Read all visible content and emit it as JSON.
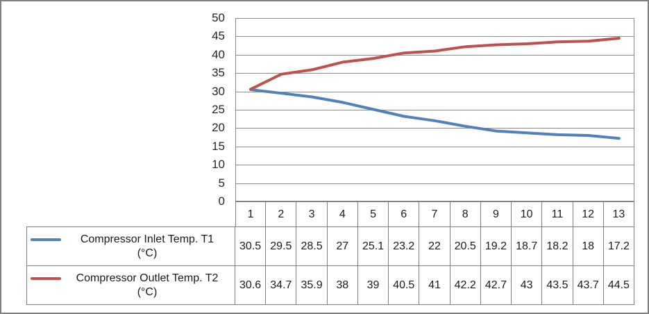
{
  "frame": {
    "background": "#FFFFFF",
    "border_color": "#7F7F7F"
  },
  "chart_data": {
    "type": "line",
    "title": "",
    "xlabel": "",
    "ylabel": "",
    "categories": [
      1,
      2,
      3,
      4,
      5,
      6,
      7,
      8,
      9,
      10,
      11,
      12,
      13
    ],
    "series": [
      {
        "name": "Compressor Inlet Temp. T1 (°C)",
        "color": "#4F81BD",
        "values": [
          30.5,
          29.5,
          28.5,
          27,
          25.1,
          23.2,
          22,
          20.5,
          19.2,
          18.7,
          18.2,
          18,
          17.2
        ]
      },
      {
        "name": "Compressor Outlet Temp. T2 (°C)",
        "color": "#C0504D",
        "values": [
          30.6,
          34.7,
          35.9,
          38,
          39,
          40.5,
          41,
          42.2,
          42.7,
          43,
          43.5,
          43.7,
          44.5
        ]
      }
    ],
    "ylim": [
      0,
      50
    ],
    "yticks": [
      0,
      5,
      10,
      15,
      20,
      25,
      30,
      35,
      40,
      45,
      50
    ],
    "grid": true,
    "gridline_color": "#8A8A8A",
    "axis_color": "#8A8A8A",
    "legend_position": "left-of-data-table"
  },
  "legend": {
    "rows": [
      {
        "line1": "Compressor Inlet Temp. T1",
        "line2": "(°C)"
      },
      {
        "line1": "Compressor Outlet Temp. T2",
        "line2": "(°C)"
      }
    ]
  },
  "table": {
    "border_color": "#7F7F7F",
    "text_color": "#1A1A1A"
  }
}
